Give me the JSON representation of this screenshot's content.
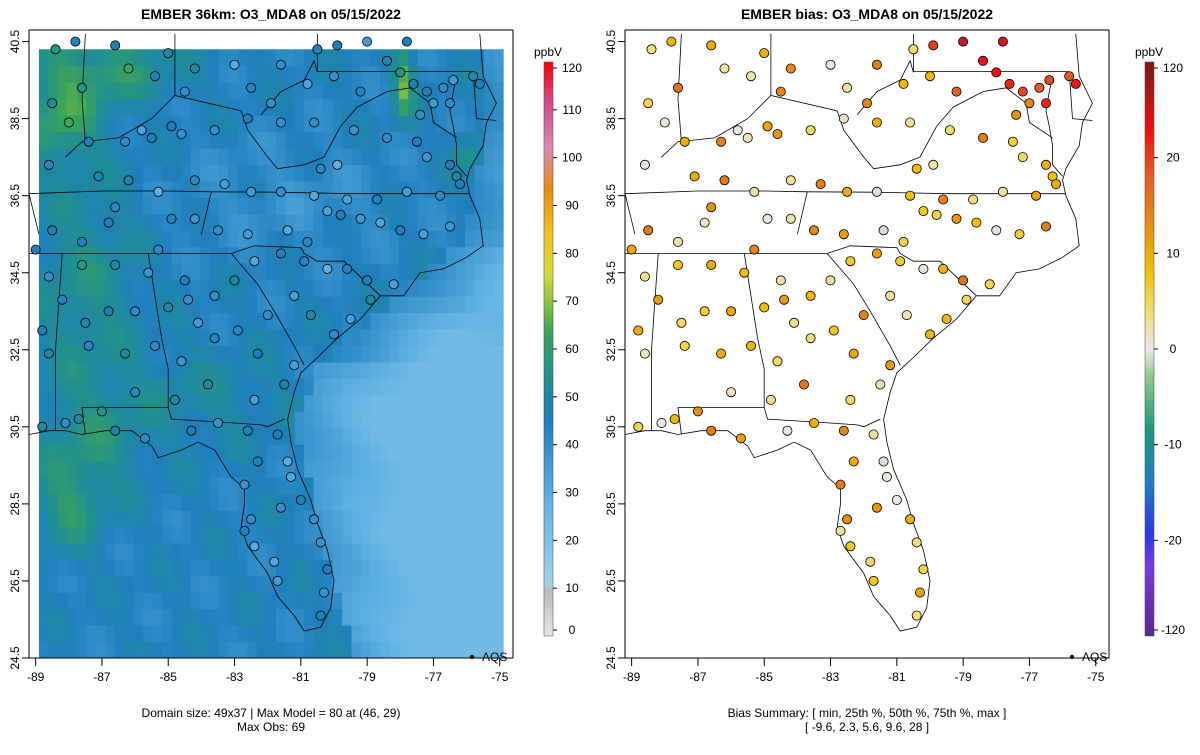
{
  "chart_data": [
    {
      "type": "heatmap",
      "title": "EMBER 36km: O3_MDA8 on 05/15/2022",
      "x_ticks": [
        "-89",
        "-87",
        "-85",
        "-83",
        "-81",
        "-79",
        "-77",
        "-75"
      ],
      "y_ticks": [
        "40.5",
        "38.5",
        "36.5",
        "34.5",
        "32.5",
        "30.5",
        "28.5",
        "26.5",
        "24.5"
      ],
      "xlim": [
        -89.2,
        -74.6
      ],
      "ylim": [
        24.5,
        40.8
      ],
      "legend": "AQS",
      "colorbar": {
        "unit": "ppbV",
        "ticks": [
          "120",
          "110",
          "100",
          "90",
          "80",
          "70",
          "60",
          "50",
          "40",
          "30",
          "20",
          "10",
          "0"
        ],
        "range": [
          0,
          120
        ]
      },
      "footer": [
        "Domain size: 49x37 | Max Model = 80 at (46, 29)",
        "Max Obs: 69"
      ],
      "grid": false
    },
    {
      "type": "scatter",
      "title": "EMBER bias: O3_MDA8 on 05/15/2022",
      "x_ticks": [
        "-89",
        "-87",
        "-85",
        "-83",
        "-81",
        "-79",
        "-77",
        "-75"
      ],
      "y_ticks": [
        "40.5",
        "38.5",
        "36.5",
        "34.5",
        "32.5",
        "30.5",
        "28.5",
        "26.5",
        "24.5"
      ],
      "xlim": [
        -89.2,
        -74.6
      ],
      "ylim": [
        24.5,
        40.8
      ],
      "legend": "AQS",
      "colorbar": {
        "unit": "ppbV",
        "ticks": [
          "120",
          "20",
          "10",
          "0",
          "-10",
          "-20",
          "-120"
        ],
        "range": [
          -120,
          120
        ]
      },
      "footer": [
        "Bias Summary: [ min, 25th %, 50th %, 75th %, max ]",
        "[ -9.6,   2.3,   5.6,   9.6,   28 ]"
      ],
      "grid": false
    }
  ],
  "sites": [
    [
      -80.5,
      40.3
    ],
    [
      -79.9,
      40.4
    ],
    [
      -79.0,
      40.5
    ],
    [
      -78.4,
      40.0
    ],
    [
      -77.8,
      40.5
    ],
    [
      -80.0,
      39.6
    ],
    [
      -79.2,
      39.2
    ],
    [
      -78.0,
      39.7
    ],
    [
      -77.6,
      39.4
    ],
    [
      -77.2,
      39.2
    ],
    [
      -77.0,
      38.9
    ],
    [
      -76.7,
      39.3
    ],
    [
      -76.5,
      38.9
    ],
    [
      -76.4,
      39.5
    ],
    [
      -75.8,
      39.6
    ],
    [
      -75.6,
      39.4
    ],
    [
      -77.4,
      38.6
    ],
    [
      -77.5,
      37.9
    ],
    [
      -77.2,
      37.5
    ],
    [
      -76.5,
      37.3
    ],
    [
      -76.3,
      37.0
    ],
    [
      -79.9,
      37.3
    ],
    [
      -80.4,
      37.2
    ],
    [
      -78.4,
      38.0
    ],
    [
      -79.4,
      38.2
    ],
    [
      -80.6,
      38.4
    ],
    [
      -81.6,
      38.4
    ],
    [
      -81.9,
      38.9
    ],
    [
      -82.6,
      38.5
    ],
    [
      -83.6,
      38.2
    ],
    [
      -84.6,
      38.1
    ],
    [
      -84.9,
      38.3
    ],
    [
      -85.8,
      38.2
    ],
    [
      -85.5,
      38.0
    ],
    [
      -86.3,
      37.9
    ],
    [
      -87.4,
      37.9
    ],
    [
      -88.0,
      38.4
    ],
    [
      -88.5,
      38.9
    ],
    [
      -87.6,
      39.3
    ],
    [
      -86.2,
      39.8
    ],
    [
      -85.4,
      39.6
    ],
    [
      -84.5,
      39.2
    ],
    [
      -84.2,
      39.8
    ],
    [
      -83.0,
      39.9
    ],
    [
      -82.5,
      39.3
    ],
    [
      -81.6,
      39.9
    ],
    [
      -80.8,
      39.4
    ],
    [
      -88.4,
      40.3
    ],
    [
      -87.8,
      40.5
    ],
    [
      -86.6,
      40.4
    ],
    [
      -85.0,
      40.2
    ],
    [
      -88.6,
      37.3
    ],
    [
      -87.1,
      37.0
    ],
    [
      -86.2,
      36.9
    ],
    [
      -85.3,
      36.6
    ],
    [
      -84.2,
      36.9
    ],
    [
      -83.3,
      36.8
    ],
    [
      -82.5,
      36.6
    ],
    [
      -81.6,
      36.6
    ],
    [
      -80.6,
      36.5
    ],
    [
      -79.6,
      36.4
    ],
    [
      -78.7,
      36.4
    ],
    [
      -77.8,
      36.6
    ],
    [
      -76.8,
      36.5
    ],
    [
      -76.2,
      36.8
    ],
    [
      -80.2,
      36.1
    ],
    [
      -79.8,
      36.0
    ],
    [
      -79.2,
      35.9
    ],
    [
      -78.6,
      35.8
    ],
    [
      -78.0,
      35.6
    ],
    [
      -77.3,
      35.5
    ],
    [
      -76.5,
      35.7
    ],
    [
      -80.8,
      35.3
    ],
    [
      -81.4,
      35.6
    ],
    [
      -82.6,
      35.5
    ],
    [
      -83.5,
      35.6
    ],
    [
      -84.2,
      35.9
    ],
    [
      -84.9,
      35.9
    ],
    [
      -85.3,
      35.1
    ],
    [
      -86.6,
      36.2
    ],
    [
      -86.8,
      35.8
    ],
    [
      -87.6,
      35.3
    ],
    [
      -88.5,
      35.6
    ],
    [
      -89.0,
      35.1
    ],
    [
      -88.6,
      34.4
    ],
    [
      -87.6,
      34.7
    ],
    [
      -86.6,
      34.7
    ],
    [
      -85.6,
      34.5
    ],
    [
      -84.5,
      34.3
    ],
    [
      -84.4,
      33.8
    ],
    [
      -83.6,
      33.9
    ],
    [
      -83.0,
      34.3
    ],
    [
      -82.4,
      34.8
    ],
    [
      -81.6,
      35.0
    ],
    [
      -80.9,
      34.8
    ],
    [
      -80.2,
      34.6
    ],
    [
      -79.6,
      34.6
    ],
    [
      -79.0,
      34.3
    ],
    [
      -78.2,
      34.2
    ],
    [
      -78.9,
      33.8
    ],
    [
      -79.5,
      33.3
    ],
    [
      -80.0,
      32.9
    ],
    [
      -80.7,
      33.4
    ],
    [
      -81.2,
      33.9
    ],
    [
      -82.0,
      33.4
    ],
    [
      -82.9,
      33.0
    ],
    [
      -84.1,
      33.2
    ],
    [
      -85.0,
      33.6
    ],
    [
      -86.0,
      33.5
    ],
    [
      -86.8,
      33.5
    ],
    [
      -87.5,
      33.2
    ],
    [
      -88.2,
      33.8
    ],
    [
      -88.8,
      33.0
    ],
    [
      -88.6,
      32.4
    ],
    [
      -87.4,
      32.6
    ],
    [
      -86.3,
      32.4
    ],
    [
      -85.4,
      32.6
    ],
    [
      -84.6,
      32.2
    ],
    [
      -83.6,
      32.8
    ],
    [
      -82.3,
      32.4
    ],
    [
      -81.2,
      32.1
    ],
    [
      -81.5,
      31.6
    ],
    [
      -82.4,
      31.2
    ],
    [
      -83.8,
      31.6
    ],
    [
      -84.8,
      31.2
    ],
    [
      -86.0,
      31.4
    ],
    [
      -87.0,
      30.9
    ],
    [
      -87.7,
      30.7
    ],
    [
      -88.1,
      30.6
    ],
    [
      -88.8,
      30.5
    ],
    [
      -86.6,
      30.4
    ],
    [
      -85.7,
      30.2
    ],
    [
      -84.3,
      30.4
    ],
    [
      -83.5,
      30.6
    ],
    [
      -82.6,
      30.4
    ],
    [
      -81.7,
      30.3
    ],
    [
      -81.4,
      29.6
    ],
    [
      -82.3,
      29.6
    ],
    [
      -82.7,
      29.0
    ],
    [
      -81.3,
      29.2
    ],
    [
      -81.0,
      28.6
    ],
    [
      -81.6,
      28.4
    ],
    [
      -82.5,
      28.1
    ],
    [
      -82.7,
      27.8
    ],
    [
      -82.4,
      27.4
    ],
    [
      -80.6,
      28.1
    ],
    [
      -80.4,
      27.5
    ],
    [
      -81.8,
      27.0
    ],
    [
      -80.2,
      26.8
    ],
    [
      -80.3,
      26.2
    ],
    [
      -81.7,
      26.5
    ],
    [
      -80.4,
      25.6
    ]
  ]
}
